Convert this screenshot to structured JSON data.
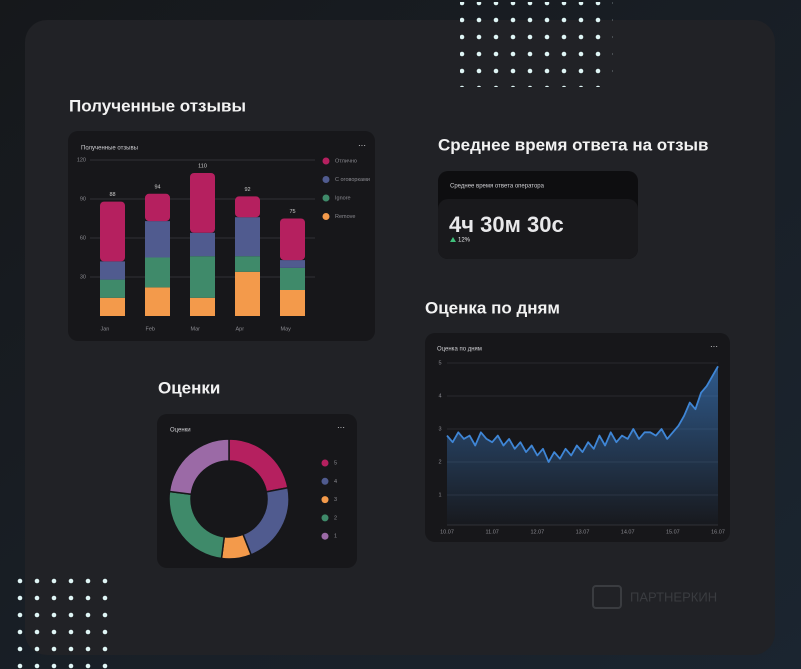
{
  "watermark": "ПАРТНЕРКИН",
  "response_card": {
    "heading": "Среднее время ответа на отзыв",
    "title": "Среднее время ответа оператора",
    "value": "4ч 30м 30с",
    "change": "12%"
  },
  "chart_data": [
    {
      "type": "bar",
      "stacked": true,
      "heading": "Полученные отзывы",
      "title": "Полученные отзывы",
      "categories": [
        "Jan",
        "Feb",
        "Mar",
        "Apr",
        "May"
      ],
      "series": [
        {
          "name": "Отлично",
          "color": "#b5205f",
          "values": [
            46,
            21,
            46,
            16,
            32
          ]
        },
        {
          "name": "С оговорками",
          "color": "#505b8f",
          "values": [
            14,
            28,
            18,
            30,
            6
          ]
        },
        {
          "name": "Ignore",
          "color": "#3f8a6a",
          "values": [
            14,
            23,
            32,
            12,
            17
          ]
        },
        {
          "name": "Remove",
          "color": "#f39a4b",
          "values": [
            14,
            22,
            14,
            34,
            20
          ]
        }
      ],
      "totals": [
        88,
        94,
        110,
        92,
        75
      ],
      "ylim": [
        0,
        120
      ],
      "yticks": [
        30,
        60,
        90,
        120
      ],
      "grid": true
    },
    {
      "type": "donut",
      "heading": "Оценки",
      "title": "Оценки",
      "categories": [
        "5",
        "4",
        "3",
        "2",
        "1"
      ],
      "values": [
        22,
        22,
        8,
        25,
        23
      ],
      "colors": [
        "#b5205f",
        "#505b8f",
        "#f39a4b",
        "#3f8a6a",
        "#9b6aa6"
      ]
    },
    {
      "type": "line",
      "heading": "Оценка по дням",
      "title": "Оценка по дням",
      "categories": [
        "10.07",
        null,
        null,
        null,
        null,
        null,
        null,
        null,
        "11.07",
        null,
        null,
        null,
        null,
        null,
        null,
        null,
        "12.07",
        null,
        null,
        null,
        null,
        null,
        null,
        null,
        "13.07",
        null,
        null,
        null,
        null,
        null,
        null,
        null,
        "14.07",
        null,
        null,
        null,
        null,
        null,
        null,
        null,
        "15.07",
        null,
        null,
        null,
        null,
        null,
        null,
        null,
        "16.07"
      ],
      "values": [
        2.8,
        2.6,
        2.9,
        2.7,
        2.8,
        2.5,
        2.9,
        2.7,
        2.6,
        2.8,
        2.5,
        2.7,
        2.4,
        2.6,
        2.3,
        2.5,
        2.2,
        2.4,
        2.0,
        2.3,
        2.1,
        2.4,
        2.2,
        2.5,
        2.3,
        2.6,
        2.4,
        2.8,
        2.5,
        2.9,
        2.6,
        2.8,
        2.7,
        3.0,
        2.7,
        2.9,
        2.9,
        2.8,
        3.0,
        2.7,
        2.9,
        3.1,
        3.4,
        3.8,
        3.6,
        4.1,
        4.3,
        4.6,
        4.9
      ],
      "color": "#3f86d6",
      "ylim": [
        0,
        5
      ],
      "yticks": [
        1,
        2,
        3,
        4,
        5
      ],
      "grid": true
    }
  ]
}
